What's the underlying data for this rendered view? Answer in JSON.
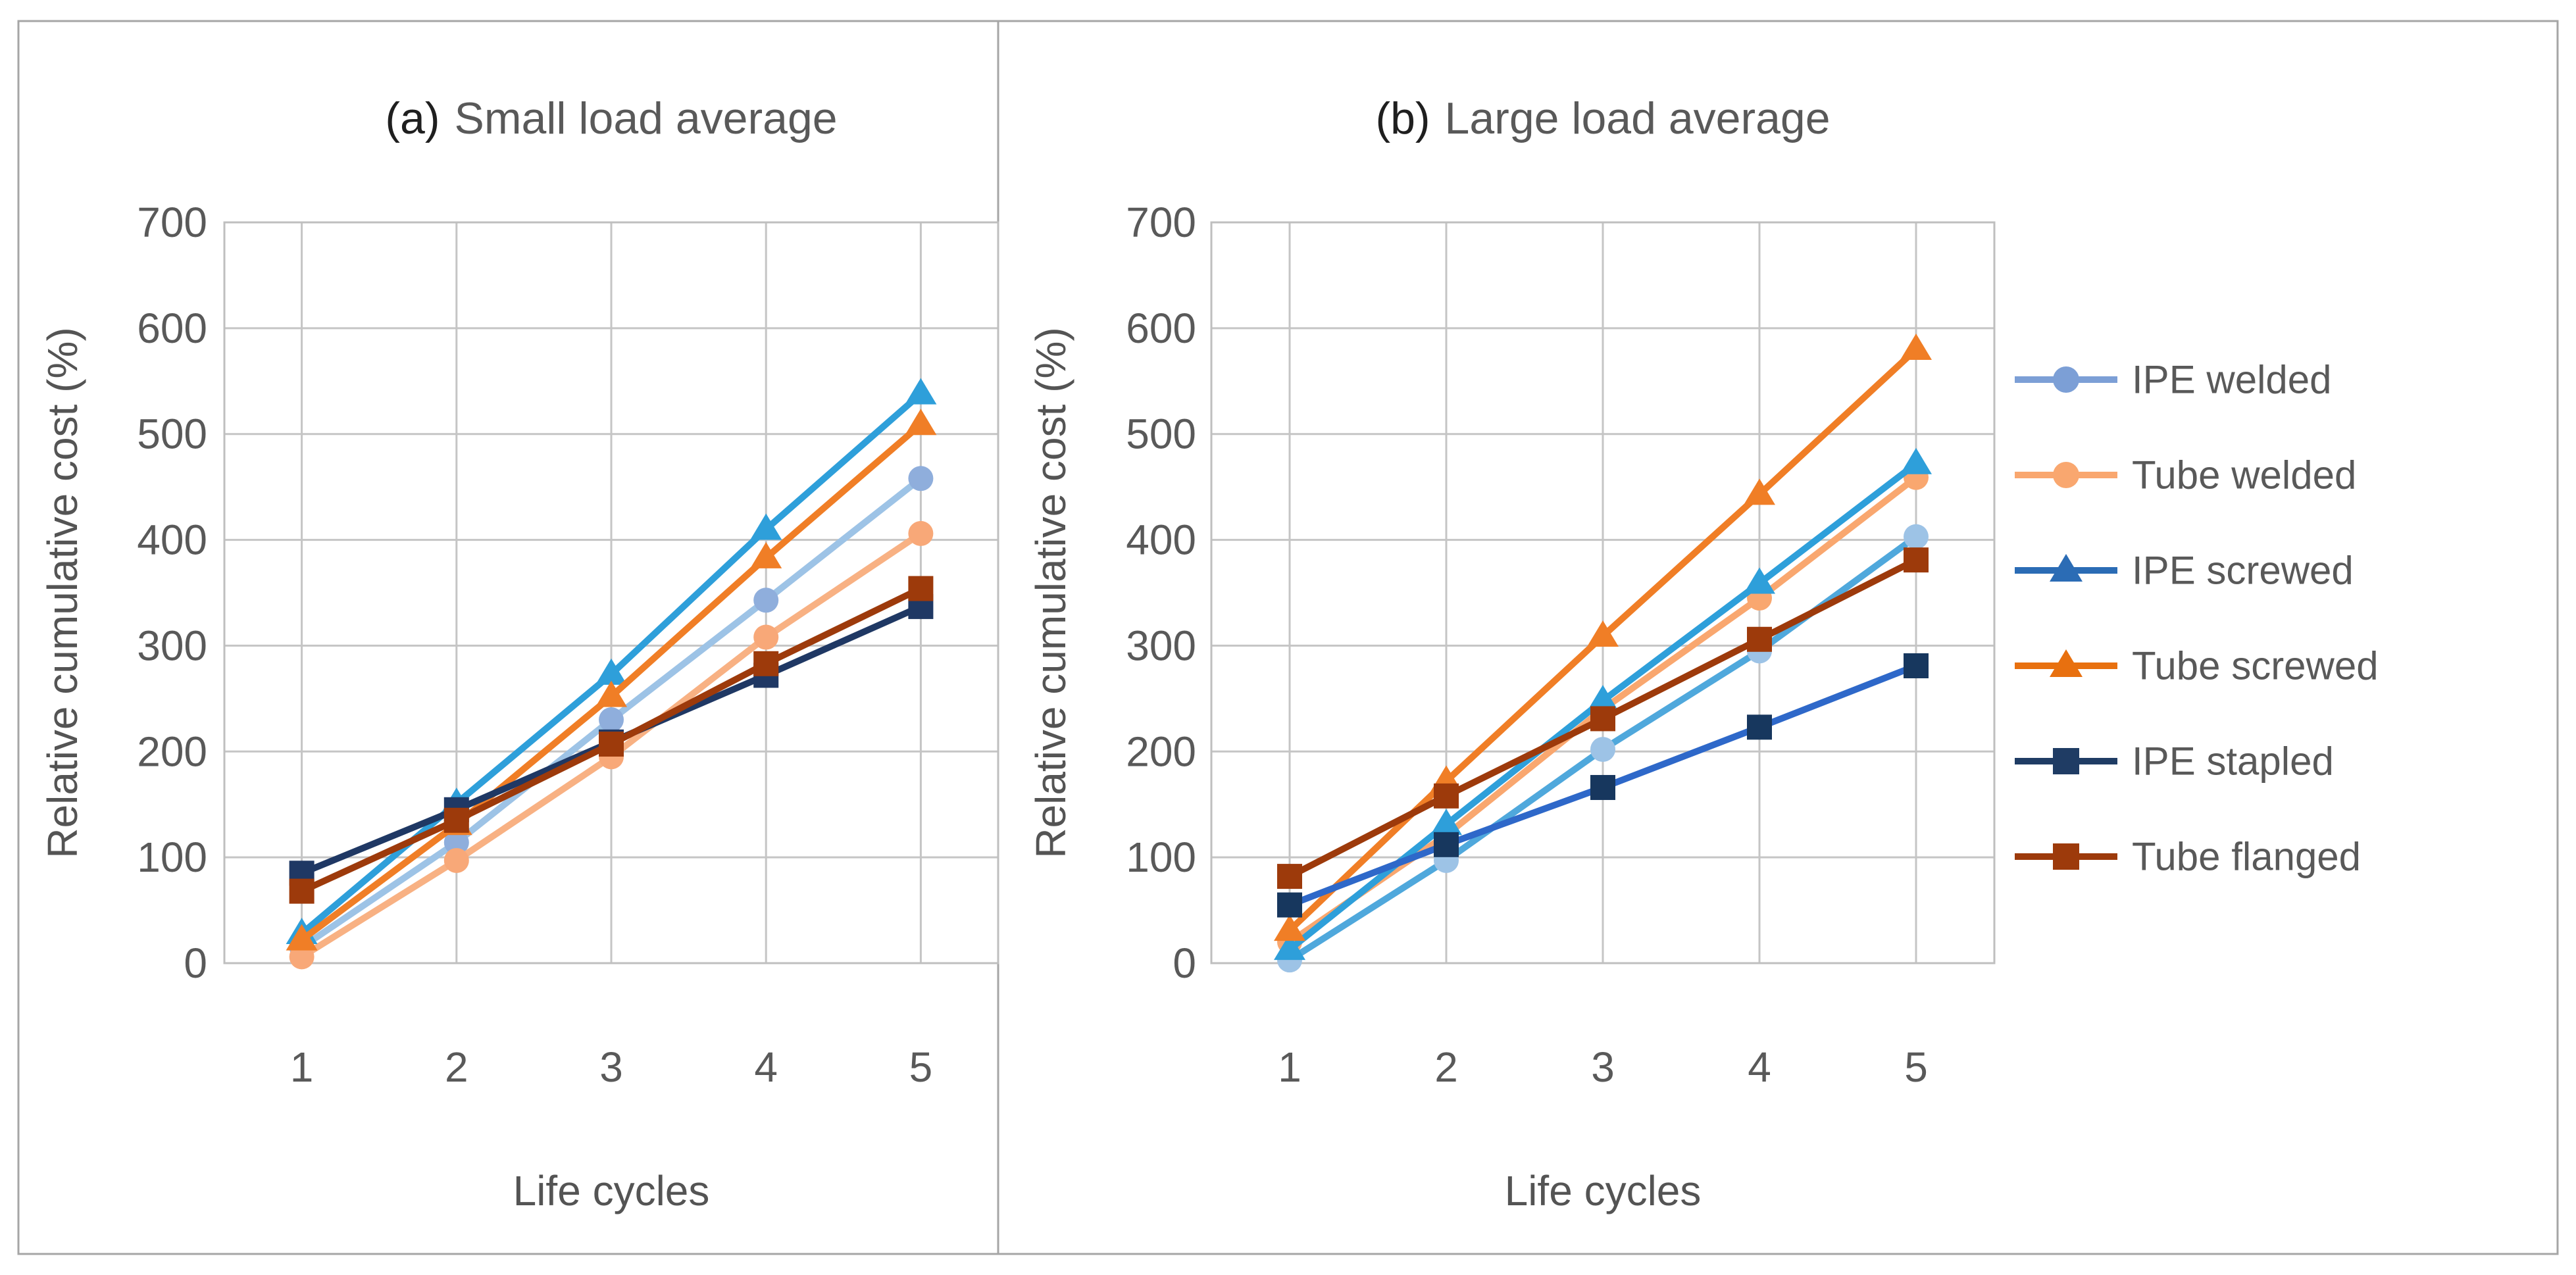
{
  "figure": {
    "background": "#FFFFFF",
    "border_color": "#A6A6A6",
    "gridline_color": "#C5C5C5",
    "plot_border_color": "#BFBFBF"
  },
  "legend": {
    "position": "right",
    "items": [
      {
        "label": "IPE welded",
        "marker": "circle",
        "color": "#7C9FD6"
      },
      {
        "label": "Tube welded",
        "marker": "circle",
        "color": "#F9A76F"
      },
      {
        "label": "IPE screwed",
        "marker": "triangle",
        "color": "#2B6CB5"
      },
      {
        "label": "Tube screwed",
        "marker": "triangle",
        "color": "#E8700F"
      },
      {
        "label": "IPE stapled",
        "marker": "square",
        "color": "#1F3C64"
      },
      {
        "label": "Tube flanged",
        "marker": "square",
        "color": "#9D3A0B"
      }
    ]
  },
  "chart_data": [
    {
      "type": "line",
      "panel": "a",
      "title_prefix": "(a)",
      "title": "Small load average",
      "xlabel": "Life cycles",
      "ylabel": "Relative cumulative cost (%)",
      "x": [
        1,
        2,
        3,
        4,
        5
      ],
      "ylim": [
        0,
        700
      ],
      "yticks": [
        0,
        100,
        200,
        300,
        400,
        500,
        600,
        700
      ],
      "grid": true,
      "legend_position": "none",
      "series": [
        {
          "name": "IPE welded",
          "marker": "circle",
          "line_color": "#9DC3E6",
          "marker_color": "#8FAEDC",
          "values": [
            15,
            114,
            230,
            343,
            458
          ]
        },
        {
          "name": "Tube welded",
          "marker": "circle",
          "line_color": "#F8B183",
          "marker_color": "#F8A878",
          "values": [
            6,
            97,
            195,
            308,
            406
          ]
        },
        {
          "name": "IPE screwed",
          "marker": "triangle",
          "line_color": "#2E9FDA",
          "marker_color": "#2E9FDA",
          "values": [
            28,
            151,
            273,
            410,
            538
          ]
        },
        {
          "name": "Tube screwed",
          "marker": "triangle",
          "line_color": "#F07E26",
          "marker_color": "#F07E26",
          "values": [
            22,
            131,
            252,
            383,
            509
          ]
        },
        {
          "name": "IPE stapled",
          "marker": "square",
          "line_color": "#1F3864",
          "marker_color": "#1F3864",
          "values": [
            85,
            145,
            209,
            272,
            337
          ]
        },
        {
          "name": "Tube flanged",
          "marker": "square",
          "line_color": "#9D3A0B",
          "marker_color": "#9D3A0B",
          "values": [
            68,
            135,
            207,
            283,
            354
          ]
        }
      ]
    },
    {
      "type": "line",
      "panel": "b",
      "title_prefix": "(b)",
      "title": "Large load average",
      "xlabel": "Life cycles",
      "ylabel": "Relative cumulative cost (%)",
      "x": [
        1,
        2,
        3,
        4,
        5
      ],
      "ylim": [
        0,
        700
      ],
      "yticks": [
        0,
        100,
        200,
        300,
        400,
        500,
        600,
        700
      ],
      "grid": true,
      "legend_position": "right",
      "series": [
        {
          "name": "IPE welded",
          "marker": "circle",
          "line_color": "#4FA8DC",
          "marker_color": "#9DC3E6",
          "values": [
            3,
            97,
            202,
            295,
            403
          ]
        },
        {
          "name": "Tube welded",
          "marker": "circle",
          "line_color": "#F9A76F",
          "marker_color": "#F9A76F",
          "values": [
            20,
            121,
            240,
            345,
            459
          ]
        },
        {
          "name": "IPE screwed",
          "marker": "triangle",
          "line_color": "#2E9FDA",
          "marker_color": "#2E9FDA",
          "values": [
            13,
            131,
            248,
            359,
            472
          ]
        },
        {
          "name": "Tube screwed",
          "marker": "triangle",
          "line_color": "#F07E26",
          "marker_color": "#F07E26",
          "values": [
            31,
            172,
            309,
            443,
            580
          ]
        },
        {
          "name": "IPE stapled",
          "marker": "square",
          "line_color": "#2E68C9",
          "marker_color": "#17375E",
          "values": [
            55,
            112,
            166,
            223,
            281
          ]
        },
        {
          "name": "Tube flanged",
          "marker": "square",
          "line_color": "#9D3A0B",
          "marker_color": "#9D3A0B",
          "values": [
            82,
            158,
            231,
            306,
            381
          ]
        }
      ]
    }
  ]
}
